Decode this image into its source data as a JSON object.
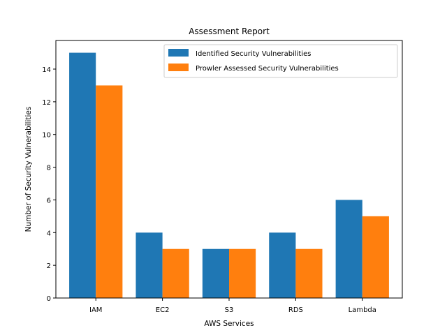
{
  "chart_data": {
    "type": "bar",
    "title": "Assessment Report",
    "xlabel": "AWS Services",
    "ylabel": "Number of Security Vulnerabilities",
    "categories": [
      "IAM",
      "EC2",
      "S3",
      "RDS",
      "Lambda"
    ],
    "series": [
      {
        "name": "Identified Security Vulnerabilities",
        "values": [
          15,
          4,
          3,
          4,
          6
        ],
        "color": "#1f77b4"
      },
      {
        "name": "Prowler Assessed Security Vulnerabilities",
        "values": [
          13,
          3,
          3,
          3,
          5
        ],
        "color": "#ff7f0e"
      }
    ],
    "ylim": [
      0,
      15.75
    ],
    "yticks": [
      "0",
      "2",
      "4",
      "6",
      "8",
      "10",
      "12",
      "14"
    ],
    "legend_position": "upper right",
    "grid": false
  }
}
